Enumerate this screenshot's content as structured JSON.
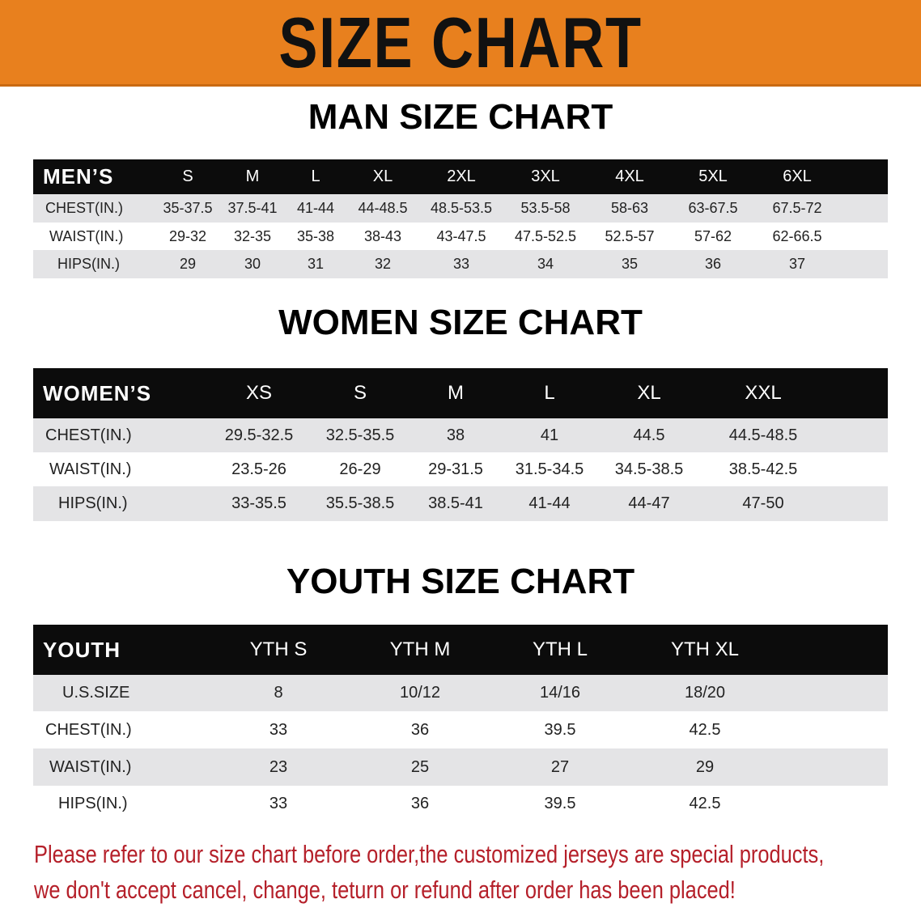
{
  "banner": {
    "title": "SIZE CHART",
    "background_color": "#e8801e"
  },
  "men": {
    "title": "MAN SIZE CHART",
    "header_label": "MEN’S",
    "sizes": [
      "S",
      "M",
      "L",
      "XL",
      "2XL",
      "3XL",
      "4XL",
      "5XL",
      "6XL"
    ],
    "rows": [
      {
        "label": "CHEST(IN.)",
        "values": [
          "35-37.5",
          "37.5-41",
          "41-44",
          "44-48.5",
          "48.5-53.5",
          "53.5-58",
          "58-63",
          "63-67.5",
          "67.5-72"
        ]
      },
      {
        "label": "WAIST(IN.)",
        "values": [
          "29-32",
          "32-35",
          "35-38",
          "38-43",
          "43-47.5",
          "47.5-52.5",
          "52.5-57",
          "57-62",
          "62-66.5"
        ]
      },
      {
        "label": "HIPS(IN.)",
        "values": [
          "29",
          "30",
          "31",
          "32",
          "33",
          "34",
          "35",
          "36",
          "37"
        ]
      }
    ]
  },
  "women": {
    "title": "WOMEN SIZE CHART",
    "header_label": "WOMEN’S",
    "sizes": [
      "XS",
      "S",
      "M",
      "L",
      "XL",
      "XXL"
    ],
    "rows": [
      {
        "label": "CHEST(IN.)",
        "values": [
          "29.5-32.5",
          "32.5-35.5",
          "38",
          "41",
          "44.5",
          "44.5-48.5"
        ]
      },
      {
        "label": "WAIST(IN.)",
        "values": [
          "23.5-26",
          "26-29",
          "29-31.5",
          "31.5-34.5",
          "34.5-38.5",
          "38.5-42.5"
        ]
      },
      {
        "label": "HIPS(IN.)",
        "values": [
          "33-35.5",
          "35.5-38.5",
          "38.5-41",
          "41-44",
          "44-47",
          "47-50"
        ]
      }
    ]
  },
  "youth": {
    "title": "YOUTH SIZE CHART",
    "header_label": "YOUTH",
    "sizes": [
      "YTH S",
      "YTH M",
      "YTH L",
      "YTH XL"
    ],
    "rows": [
      {
        "label": "U.S.SIZE",
        "values": [
          "8",
          "10/12",
          "14/16",
          "18/20"
        ]
      },
      {
        "label": "CHEST(IN.)",
        "values": [
          "33",
          "36",
          "39.5",
          "42.5"
        ]
      },
      {
        "label": "WAIST(IN.)",
        "values": [
          "23",
          "25",
          "27",
          "29"
        ]
      },
      {
        "label": "HIPS(IN.)",
        "values": [
          "33",
          "36",
          "39.5",
          "42.5"
        ]
      }
    ]
  },
  "notice": {
    "line1": "Please refer to our size chart before order,the customized jerseys are special products,",
    "line2": "we don't accept cancel, change, teturn or refund after order has been placed!",
    "color": "#b5202a"
  }
}
